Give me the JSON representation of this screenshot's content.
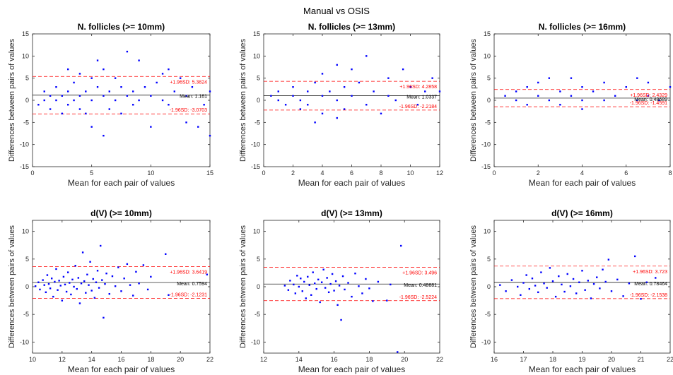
{
  "figure_title": "Manual vs OSIS",
  "colors": {
    "points": "#0000ff",
    "mean_line": "#000000",
    "limit_line": "#ff0000",
    "limit_text": "#ff0000"
  },
  "chart_data": [
    {
      "type": "scatter",
      "title": "N. follicles (>= 10mm)",
      "xlabel": "Mean for each pair of values",
      "ylabel": "Differences between pairs of values",
      "xlim": [
        0,
        15
      ],
      "ylim": [
        -15,
        15
      ],
      "xticks": [
        0,
        5,
        10,
        15
      ],
      "yticks": [
        -15,
        -10,
        -5,
        0,
        5,
        10,
        15
      ],
      "mean": 1.161,
      "upper": 5.3824,
      "lower": -3.0703,
      "mean_label": "Mean: 1.161",
      "upper_label": "+1.96SD: 5.3824",
      "lower_label": "-1.96SD: -3.0703",
      "points": [
        [
          0.5,
          -1
        ],
        [
          1,
          0
        ],
        [
          1,
          2
        ],
        [
          1.5,
          1
        ],
        [
          1.5,
          -2
        ],
        [
          2,
          0
        ],
        [
          2,
          3
        ],
        [
          2.5,
          1
        ],
        [
          2.5,
          -3
        ],
        [
          3,
          2
        ],
        [
          3,
          -1
        ],
        [
          3,
          7
        ],
        [
          3.5,
          0
        ],
        [
          3.5,
          4
        ],
        [
          4,
          1
        ],
        [
          4,
          -2
        ],
        [
          4,
          6
        ],
        [
          4.5,
          2
        ],
        [
          4.5,
          -3
        ],
        [
          5,
          0
        ],
        [
          5,
          5
        ],
        [
          5,
          -6
        ],
        [
          5.5,
          3
        ],
        [
          5.5,
          9
        ],
        [
          6,
          1
        ],
        [
          6,
          -8
        ],
        [
          6,
          7
        ],
        [
          6.5,
          2
        ],
        [
          6.5,
          -2
        ],
        [
          7,
          0
        ],
        [
          7,
          5
        ],
        [
          7.5,
          3
        ],
        [
          7.5,
          -3
        ],
        [
          8,
          1
        ],
        [
          8,
          11
        ],
        [
          8.5,
          2
        ],
        [
          8.5,
          -1
        ],
        [
          9,
          9
        ],
        [
          9,
          0
        ],
        [
          9.5,
          3
        ],
        [
          10,
          -6
        ],
        [
          10,
          1
        ],
        [
          10.5,
          4
        ],
        [
          11,
          0
        ],
        [
          11,
          6
        ],
        [
          11.5,
          7
        ],
        [
          11.5,
          -1
        ],
        [
          12,
          2
        ],
        [
          12.5,
          5
        ],
        [
          13,
          -5
        ],
        [
          13,
          1
        ],
        [
          13.5,
          3
        ],
        [
          14,
          -6
        ],
        [
          14.5,
          -1
        ],
        [
          15,
          -8
        ],
        [
          15,
          2
        ]
      ]
    },
    {
      "type": "scatter",
      "title": "N. follicles (>= 13mm)",
      "xlabel": "Mean for each pair of values",
      "ylabel": "Differences between pairs of values",
      "xlim": [
        0,
        12
      ],
      "ylim": [
        -15,
        15
      ],
      "xticks": [
        0,
        2,
        4,
        6,
        8,
        10,
        12
      ],
      "yticks": [
        -15,
        -10,
        -5,
        0,
        5,
        10,
        15
      ],
      "mean": 1.0337,
      "upper": 4.2858,
      "lower": -2.2184,
      "mean_label": "Mean: 1.0337",
      "upper_label": "+1.96SD: 4.2858",
      "lower_label": "-1.96SD: -2.2184",
      "points": [
        [
          0.5,
          1
        ],
        [
          1,
          0
        ],
        [
          1,
          2
        ],
        [
          1.5,
          -1
        ],
        [
          2,
          1
        ],
        [
          2,
          3
        ],
        [
          2.5,
          0
        ],
        [
          2.5,
          -2
        ],
        [
          3,
          2
        ],
        [
          3,
          -1
        ],
        [
          3.5,
          -5
        ],
        [
          3.5,
          4
        ],
        [
          4,
          1
        ],
        [
          4,
          -3
        ],
        [
          4,
          6
        ],
        [
          4.5,
          2
        ],
        [
          5,
          0
        ],
        [
          5,
          8
        ],
        [
          5,
          -4
        ],
        [
          5.5,
          3
        ],
        [
          5.5,
          -2
        ],
        [
          6,
          1
        ],
        [
          6,
          7
        ],
        [
          6.5,
          4
        ],
        [
          7,
          10
        ],
        [
          7,
          -1
        ],
        [
          7.5,
          2
        ],
        [
          8,
          -3
        ],
        [
          8.5,
          5
        ],
        [
          8.5,
          1
        ],
        [
          9,
          0
        ],
        [
          9.5,
          7
        ],
        [
          10,
          3
        ],
        [
          10.5,
          -1
        ],
        [
          11,
          2
        ],
        [
          11.5,
          5
        ],
        [
          12,
          2
        ]
      ]
    },
    {
      "type": "scatter",
      "title": "N. follicles (>= 16mm)",
      "xlabel": "Mean for each pair of values",
      "ylabel": "Differences between pairs of values",
      "xlim": [
        0,
        8
      ],
      "ylim": [
        -15,
        15
      ],
      "xticks": [
        0,
        2,
        4,
        6,
        8
      ],
      "yticks": [
        -15,
        -10,
        -5,
        0,
        5,
        10,
        15
      ],
      "mean": 0.48689,
      "upper": 2.4329,
      "lower": -1.4591,
      "mean_label": "Mean: 0.48689",
      "upper_label": "+1.96SD: 2.4329",
      "lower_label": "-1.96SD: -1.4591",
      "points": [
        [
          0.5,
          1
        ],
        [
          1,
          0
        ],
        [
          1,
          2
        ],
        [
          1.5,
          3
        ],
        [
          1.5,
          -1
        ],
        [
          2,
          1
        ],
        [
          2,
          4
        ],
        [
          2.5,
          0
        ],
        [
          2.5,
          5
        ],
        [
          3,
          2
        ],
        [
          3,
          -1
        ],
        [
          3.5,
          5
        ],
        [
          3.5,
          1
        ],
        [
          4,
          0
        ],
        [
          4,
          3
        ],
        [
          4,
          -2
        ],
        [
          4.5,
          2
        ],
        [
          5,
          4
        ],
        [
          5,
          0
        ],
        [
          5.5,
          1
        ],
        [
          6,
          3
        ],
        [
          6.5,
          5
        ],
        [
          6.5,
          0
        ],
        [
          7,
          4
        ],
        [
          7,
          1
        ],
        [
          7.5,
          0
        ],
        [
          8,
          3
        ]
      ]
    },
    {
      "type": "scatter",
      "title": "d(V) (>= 10mm)",
      "xlabel": "Mean for each pair of values",
      "ylabel": "Differences between pairs of values",
      "xlim": [
        10,
        22
      ],
      "ylim": [
        -12,
        12
      ],
      "xticks": [
        10,
        12,
        14,
        16,
        18,
        20,
        22
      ],
      "yticks": [
        -10,
        -5,
        0,
        5,
        10
      ],
      "mean": 0.7594,
      "upper": 3.6419,
      "lower": -2.1231,
      "mean_label": "Mean: 0.7594",
      "upper_label": "+1.96SD: 3.6419",
      "lower_label": "-1.96SD: -2.1231",
      "points": [
        [
          10.2,
          0.1
        ],
        [
          10.4,
          0.8
        ],
        [
          10.5,
          -0.5
        ],
        [
          10.7,
          1.2
        ],
        [
          10.8,
          0.3
        ],
        [
          10.9,
          -1.0
        ],
        [
          11.0,
          2.1
        ],
        [
          11.1,
          0.5
        ],
        [
          11.2,
          -0.3
        ],
        [
          11.3,
          1.5
        ],
        [
          11.4,
          -1.8
        ],
        [
          11.5,
          0.9
        ],
        [
          11.6,
          3.2
        ],
        [
          11.7,
          -0.6
        ],
        [
          11.8,
          1.1
        ],
        [
          11.9,
          0.2
        ],
        [
          12.0,
          -2.5
        ],
        [
          12.1,
          1.8
        ],
        [
          12.2,
          0.4
        ],
        [
          12.3,
          -0.9
        ],
        [
          12.4,
          2.6
        ],
        [
          12.5,
          0.7
        ],
        [
          12.6,
          -1.4
        ],
        [
          12.7,
          1.3
        ],
        [
          12.8,
          0.0
        ],
        [
          12.9,
          3.8
        ],
        [
          13.0,
          -0.4
        ],
        [
          13.1,
          1.6
        ],
        [
          13.2,
          -3.0
        ],
        [
          13.3,
          0.6
        ],
        [
          13.4,
          6.2
        ],
        [
          13.5,
          1.0
        ],
        [
          13.6,
          -1.1
        ],
        [
          13.7,
          2.2
        ],
        [
          13.8,
          0.3
        ],
        [
          13.9,
          4.5
        ],
        [
          14.0,
          -0.7
        ],
        [
          14.1,
          1.4
        ],
        [
          14.2,
          -2.0
        ],
        [
          14.3,
          0.8
        ],
        [
          14.4,
          2.9
        ],
        [
          14.5,
          -0.2
        ],
        [
          14.6,
          7.4
        ],
        [
          14.7,
          1.2
        ],
        [
          14.8,
          -5.6
        ],
        [
          14.9,
          0.5
        ],
        [
          15.0,
          2.4
        ],
        [
          15.2,
          -1.3
        ],
        [
          15.4,
          1.9
        ],
        [
          15.6,
          0.1
        ],
        [
          15.8,
          3.5
        ],
        [
          16.0,
          -0.8
        ],
        [
          16.2,
          1.5
        ],
        [
          16.4,
          4.1
        ],
        [
          16.6,
          0.3
        ],
        [
          16.8,
          -1.6
        ],
        [
          17.0,
          2.7
        ],
        [
          17.2,
          0.6
        ],
        [
          17.5,
          3.9
        ],
        [
          17.8,
          -0.5
        ],
        [
          18.0,
          1.8
        ],
        [
          19.0,
          5.9
        ],
        [
          19.2,
          -1.5
        ],
        [
          21.8,
          2.2
        ]
      ]
    },
    {
      "type": "scatter",
      "title": "d(V) (>= 13mm)",
      "xlabel": "Mean for each pair of values",
      "ylabel": "Differences between pairs of values",
      "xlim": [
        12,
        22
      ],
      "ylim": [
        -12,
        12
      ],
      "xticks": [
        12,
        14,
        16,
        18,
        20,
        22
      ],
      "yticks": [
        -10,
        -5,
        0,
        5,
        10
      ],
      "mean": 0.48681,
      "upper": 3.4961,
      "lower": -2.5224,
      "mean_label": "Mean: 0.48681",
      "upper_label": "+1.96SD: 3.496",
      "lower_label": "-1.96SD: -2.5224",
      "points": [
        [
          13.2,
          0.2
        ],
        [
          13.4,
          -0.6
        ],
        [
          13.5,
          1.1
        ],
        [
          13.7,
          0.4
        ],
        [
          13.8,
          -1.2
        ],
        [
          13.9,
          2.0
        ],
        [
          14.0,
          0.0
        ],
        [
          14.1,
          1.5
        ],
        [
          14.2,
          -0.8
        ],
        [
          14.3,
          0.9
        ],
        [
          14.4,
          -2.1
        ],
        [
          14.5,
          1.8
        ],
        [
          14.6,
          0.3
        ],
        [
          14.7,
          -1.5
        ],
        [
          14.8,
          2.6
        ],
        [
          14.9,
          0.6
        ],
        [
          15.0,
          -0.4
        ],
        [
          15.1,
          1.3
        ],
        [
          15.2,
          -2.8
        ],
        [
          15.3,
          0.8
        ],
        [
          15.4,
          3.1
        ],
        [
          15.5,
          -0.2
        ],
        [
          15.6,
          1.6
        ],
        [
          15.7,
          -1.0
        ],
        [
          15.8,
          0.5
        ],
        [
          15.9,
          2.3
        ],
        [
          16.0,
          -0.7
        ],
        [
          16.1,
          1.0
        ],
        [
          16.2,
          -3.3
        ],
        [
          16.3,
          0.2
        ],
        [
          16.4,
          -6.0
        ],
        [
          16.5,
          1.9
        ],
        [
          16.6,
          -0.5
        ],
        [
          16.8,
          0.7
        ],
        [
          17.0,
          -1.8
        ],
        [
          17.2,
          2.4
        ],
        [
          17.4,
          0.1
        ],
        [
          17.6,
          -1.2
        ],
        [
          17.8,
          1.4
        ],
        [
          18.0,
          -0.3
        ],
        [
          18.2,
          -2.6
        ],
        [
          18.5,
          0.9
        ],
        [
          19.0,
          -2.5
        ],
        [
          19.2,
          0.4
        ],
        [
          19.6,
          -11.8
        ],
        [
          19.8,
          7.4
        ]
      ]
    },
    {
      "type": "scatter",
      "title": "d(V) (>= 16mm)",
      "xlabel": "Mean for each pair of values",
      "ylabel": "Differences between pairs of values",
      "xlim": [
        16,
        22
      ],
      "ylim": [
        -12,
        12
      ],
      "xticks": [
        16,
        17,
        18,
        19,
        20,
        21,
        22
      ],
      "yticks": [
        -10,
        -5,
        0,
        5,
        10
      ],
      "mean": 0.78464,
      "upper": 3.723,
      "lower": -2.1538,
      "mean_label": "Mean: 0.78464",
      "upper_label": "+1.96SD: 3.723",
      "lower_label": "-1.96SD: -2.1538",
      "points": [
        [
          16.2,
          0.3
        ],
        [
          16.4,
          -0.8
        ],
        [
          16.6,
          1.2
        ],
        [
          16.8,
          0.0
        ],
        [
          16.9,
          -1.5
        ],
        [
          17.0,
          0.7
        ],
        [
          17.1,
          2.1
        ],
        [
          17.2,
          -0.4
        ],
        [
          17.3,
          1.5
        ],
        [
          17.4,
          0.2
        ],
        [
          17.5,
          -1.0
        ],
        [
          17.6,
          2.6
        ],
        [
          17.7,
          0.6
        ],
        [
          17.8,
          -0.2
        ],
        [
          17.9,
          3.4
        ],
        [
          18.0,
          1.0
        ],
        [
          18.1,
          -1.8
        ],
        [
          18.2,
          1.9
        ],
        [
          18.3,
          0.4
        ],
        [
          18.4,
          -0.9
        ],
        [
          18.5,
          2.3
        ],
        [
          18.6,
          0.1
        ],
        [
          18.7,
          1.4
        ],
        [
          18.8,
          -1.2
        ],
        [
          18.9,
          0.8
        ],
        [
          19.0,
          2.9
        ],
        [
          19.1,
          -0.6
        ],
        [
          19.2,
          1.1
        ],
        [
          19.3,
          -2.1
        ],
        [
          19.4,
          0.5
        ],
        [
          19.5,
          1.7
        ],
        [
          19.6,
          -0.3
        ],
        [
          19.7,
          3.1
        ],
        [
          19.8,
          0.9
        ],
        [
          19.9,
          4.9
        ],
        [
          20.0,
          -0.8
        ],
        [
          20.2,
          1.3
        ],
        [
          20.4,
          -1.7
        ],
        [
          20.6,
          0.6
        ],
        [
          20.8,
          5.5
        ],
        [
          21.0,
          -2.2
        ],
        [
          21.2,
          0.8
        ],
        [
          21.5,
          1.6
        ]
      ]
    }
  ]
}
